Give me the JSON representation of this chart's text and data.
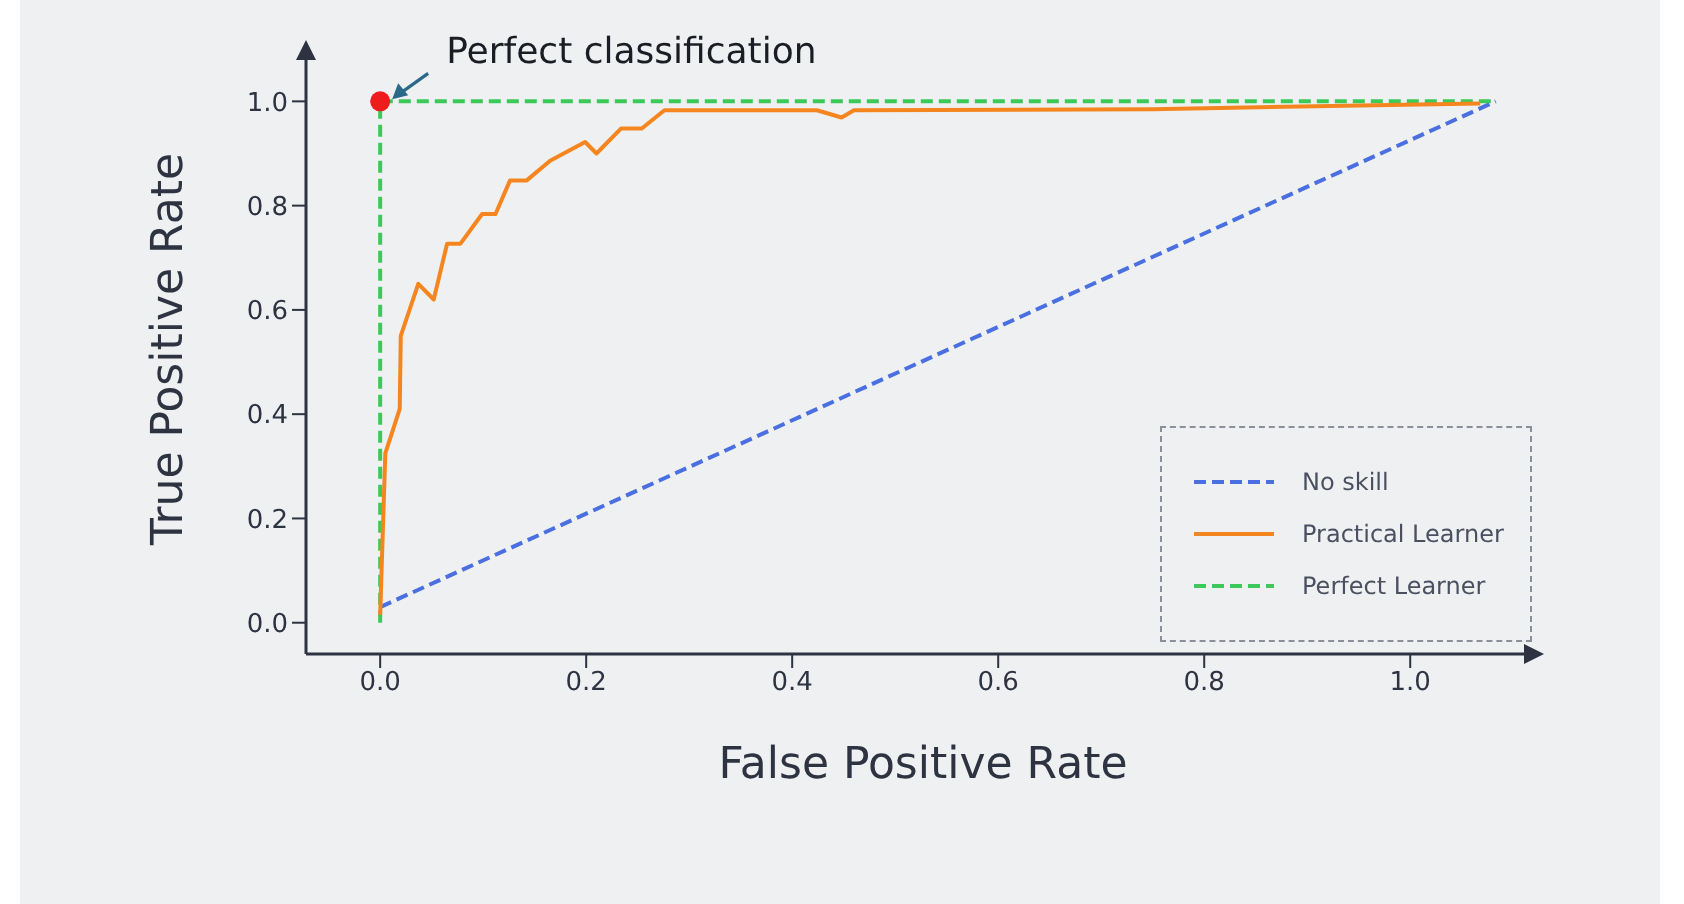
{
  "chart_data": {
    "type": "line",
    "xlabel": "False Positive Rate",
    "ylabel": "True Positive Rate",
    "xlim": [
      -0.072,
      1.126
    ],
    "ylim": [
      -0.06,
      1.11
    ],
    "xticks": [
      {
        "value": 0,
        "label": "0.0"
      },
      {
        "value": 0.2,
        "label": "0.2"
      },
      {
        "value": 0.4,
        "label": "0.4"
      },
      {
        "value": 0.6,
        "label": "0.6"
      },
      {
        "value": 0.8,
        "label": "0.8"
      },
      {
        "value": 1,
        "label": "1.0"
      }
    ],
    "yticks": [
      {
        "value": 0,
        "label": "0.0"
      },
      {
        "value": 0.2,
        "label": "0.2"
      },
      {
        "value": 0.4,
        "label": "0.4"
      },
      {
        "value": 0.6,
        "label": "0.6"
      },
      {
        "value": 0.8,
        "label": "0.8"
      },
      {
        "value": 1,
        "label": "1.0"
      }
    ],
    "legend": "bottom right",
    "marker": "none",
    "annotations": [
      {
        "text": "Perfect classification",
        "x": 0,
        "y": 1
      }
    ],
    "series": [
      {
        "name": "No skill",
        "color": "#4a6fe0",
        "line_style": "dashed",
        "x": [
          0,
          1.083
        ],
        "values": [
          0.03,
          1.0
        ]
      },
      {
        "name": "Practical Learner",
        "color": "#f5861f",
        "line_style": "solid",
        "x": [
          0,
          0.005,
          0.019,
          0.02,
          0.037,
          0.052,
          0.065,
          0.078,
          0.099,
          0.112,
          0.126,
          0.142,
          0.165,
          0.199,
          0.21,
          0.234,
          0.254,
          0.276,
          0.424,
          0.448,
          0.46,
          0.75,
          1.068
        ],
        "values": [
          0.015,
          0.325,
          0.41,
          0.55,
          0.65,
          0.62,
          0.727,
          0.727,
          0.784,
          0.784,
          0.848,
          0.848,
          0.886,
          0.922,
          0.9,
          0.948,
          0.948,
          0.983,
          0.983,
          0.969,
          0.983,
          0.985,
          0.996
        ]
      },
      {
        "name": "Perfect Learner",
        "color": "#3cc95a",
        "line_style": "dashed",
        "x": [
          0,
          0,
          1.083
        ],
        "values": [
          0,
          1.0,
          1.0
        ]
      },
      {
        "type": "scatter",
        "color": "#ee1c1c",
        "marker": "circle",
        "x": [
          0
        ],
        "values": [
          1.0
        ]
      }
    ]
  }
}
